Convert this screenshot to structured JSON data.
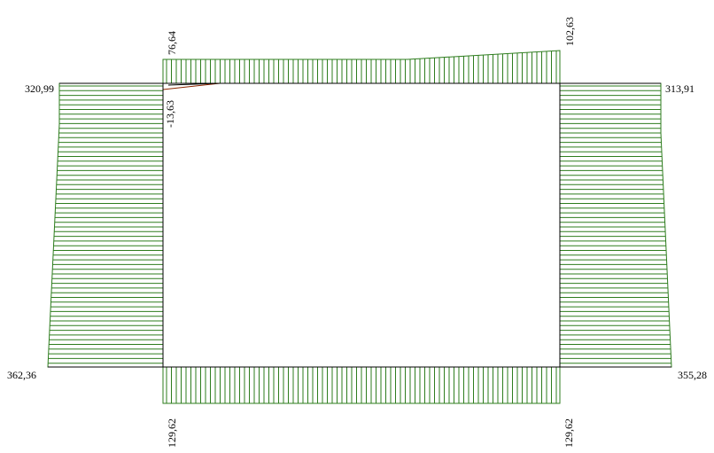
{
  "diagram": {
    "hatch_color": "#2e7d1e",
    "outline_color": "#000000",
    "labels": {
      "top_left": "76,64",
      "top_right": "102,63",
      "top_negative": "-13,63",
      "left_top": "320,99",
      "left_bottom": "362,36",
      "right_top": "313,91",
      "right_bottom": "355,28",
      "bottom_left": "129,62",
      "bottom_right": "129,62"
    }
  }
}
